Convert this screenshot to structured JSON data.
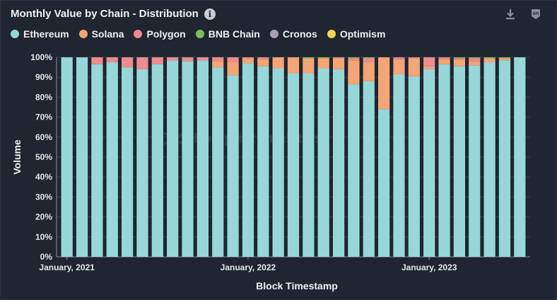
{
  "chart_data": {
    "type": "bar",
    "stacked": "percent",
    "title": "Monthly Value by Chain - Distribution",
    "xlabel": "Block Timestamp",
    "ylabel": "Volume",
    "ylim": [
      0,
      100
    ],
    "yticks": [
      "0%",
      "10%",
      "20%",
      "30%",
      "40%",
      "50%",
      "60%",
      "70%",
      "80%",
      "90%",
      "100%"
    ],
    "xticks": [
      {
        "index": 0,
        "label": "January, 2021"
      },
      {
        "index": 12,
        "label": "January, 2022"
      },
      {
        "index": 24,
        "label": "January, 2023"
      }
    ],
    "legend_position": "top-left",
    "categories": [
      "2021-01",
      "2021-02",
      "2021-03",
      "2021-04",
      "2021-05",
      "2021-06",
      "2021-07",
      "2021-08",
      "2021-09",
      "2021-10",
      "2021-11",
      "2021-12",
      "2022-01",
      "2022-02",
      "2022-03",
      "2022-04",
      "2022-05",
      "2022-06",
      "2022-07",
      "2022-08",
      "2022-09",
      "2022-10",
      "2022-11",
      "2022-12",
      "2023-01",
      "2023-02",
      "2023-03",
      "2023-04",
      "2023-05",
      "2023-06",
      "2023-07"
    ],
    "series": [
      {
        "name": "Ethereum",
        "color": "#97d7d8",
        "values": [
          100,
          100,
          96.5,
          97.5,
          95,
          94,
          96.5,
          98.5,
          98,
          98.5,
          95,
          91,
          97,
          95.5,
          94.5,
          92,
          92,
          94.5,
          94,
          86.5,
          88,
          74,
          91.5,
          90.5,
          94,
          96.5,
          95.5,
          96,
          97.5,
          98.5,
          100
        ]
      },
      {
        "name": "Solana",
        "color": "#f3a576",
        "values": [
          0,
          0,
          0,
          0,
          0,
          0,
          0,
          0,
          0,
          0,
          3,
          6.5,
          2.5,
          3.5,
          5.5,
          8,
          7.5,
          5,
          5.5,
          12,
          9.5,
          26,
          7.5,
          9,
          1.5,
          2.5,
          3.5,
          2,
          2,
          1,
          0
        ]
      },
      {
        "name": "Polygon",
        "color": "#ec8c8e",
        "values": [
          0,
          0,
          3.5,
          2.5,
          5,
          6,
          3.5,
          1.5,
          2,
          1.5,
          2,
          2.5,
          0.5,
          1,
          0,
          0,
          0,
          0,
          0.5,
          1,
          2,
          0,
          1,
          0.5,
          4.5,
          1,
          0.5,
          1.5,
          0,
          0,
          0
        ]
      },
      {
        "name": "BNB Chain",
        "color": "#7fbf59",
        "values": [
          0,
          0,
          0,
          0,
          0,
          0,
          0,
          0,
          0,
          0,
          0,
          0,
          0,
          0,
          0,
          0,
          0.5,
          0.5,
          0,
          0.5,
          0.5,
          0,
          0,
          0,
          0,
          0,
          0.5,
          0.5,
          0.5,
          0.5,
          0
        ]
      },
      {
        "name": "Cronos",
        "color": "#a79fb5",
        "values": [
          0,
          0,
          0,
          0,
          0,
          0,
          0,
          0,
          0,
          0,
          0,
          0,
          0,
          0,
          0,
          0,
          0,
          0,
          0,
          0,
          0,
          0,
          0,
          0,
          0,
          0,
          0,
          0,
          0,
          0,
          0
        ]
      },
      {
        "name": "Optimism",
        "color": "#f5d450",
        "values": [
          0,
          0,
          0,
          0,
          0,
          0,
          0,
          0,
          0,
          0,
          0,
          0,
          0,
          0,
          0,
          0,
          0,
          0,
          0,
          0,
          0,
          0,
          0,
          0,
          0,
          0,
          0,
          0,
          0,
          0,
          0
        ]
      }
    ]
  },
  "toolbar": {
    "download_icon": "download-icon",
    "api_icon": "api-icon",
    "api_label": "API"
  },
  "watermark": {
    "text": "Footprint Analytics",
    "icon": "footprint-logo-icon"
  },
  "header": {
    "info_icon": "info-icon",
    "info_glyph": "i"
  }
}
